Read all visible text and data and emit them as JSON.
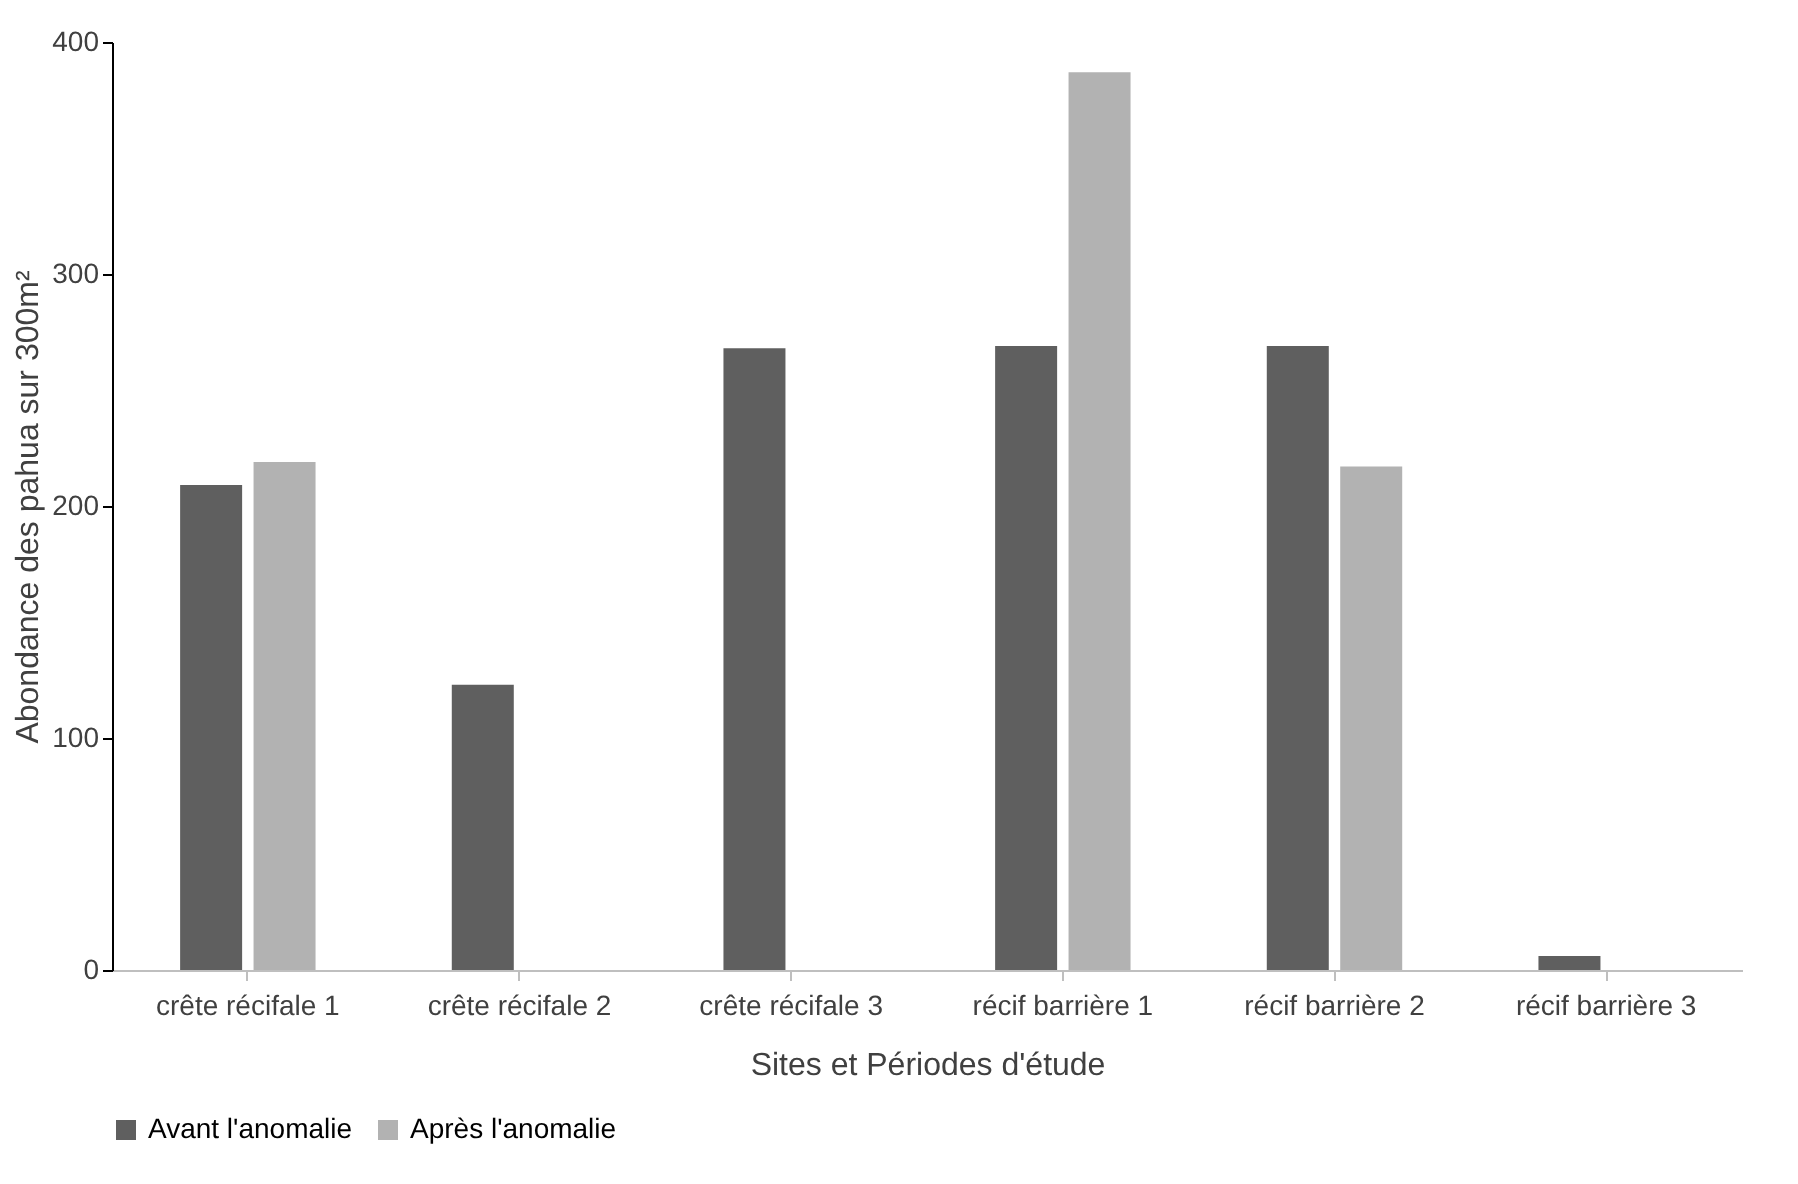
{
  "chart_data": {
    "type": "bar",
    "xlabel": "Sites et Périodes d'étude",
    "ylabel": "Abondance des pahua sur 300m²",
    "categories": [
      "crête récifale 1",
      "crête récifale 2",
      "crête récifale 3",
      "récif barrière 1",
      "récif barrière 2",
      "récif barrière 3"
    ],
    "series": [
      {
        "name": "Avant l'anomalie",
        "color": "#5f5f5f",
        "values": [
          209,
          123,
          268,
          269,
          269,
          6
        ]
      },
      {
        "name": "Après l'anomalie",
        "color": "#b2b2b2",
        "values": [
          219,
          0,
          0,
          387,
          217,
          0
        ]
      }
    ],
    "ylim": [
      0,
      400
    ],
    "yticks": [
      0,
      100,
      200,
      300,
      400
    ],
    "grid": false,
    "legend": "bottom"
  }
}
